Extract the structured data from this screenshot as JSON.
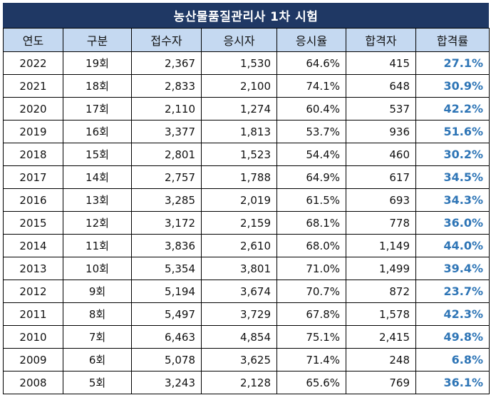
{
  "title": "농산물품질관리사 1차 시험",
  "columns": [
    "연도",
    "구분",
    "접수자",
    "응시자",
    "응시율",
    "합격자",
    "합격률"
  ],
  "rows": [
    {
      "year": "2022",
      "round": "19회",
      "applicants": "2,367",
      "examinees": "1,530",
      "exam_rate": "64.6%",
      "passers": "415",
      "pass_rate": "27.1%"
    },
    {
      "year": "2021",
      "round": "18회",
      "applicants": "2,833",
      "examinees": "2,100",
      "exam_rate": "74.1%",
      "passers": "648",
      "pass_rate": "30.9%"
    },
    {
      "year": "2020",
      "round": "17회",
      "applicants": "2,110",
      "examinees": "1,274",
      "exam_rate": "60.4%",
      "passers": "537",
      "pass_rate": "42.2%"
    },
    {
      "year": "2019",
      "round": "16회",
      "applicants": "3,377",
      "examinees": "1,813",
      "exam_rate": "53.7%",
      "passers": "936",
      "pass_rate": "51.6%"
    },
    {
      "year": "2018",
      "round": "15회",
      "applicants": "2,801",
      "examinees": "1,523",
      "exam_rate": "54.4%",
      "passers": "460",
      "pass_rate": "30.2%"
    },
    {
      "year": "2017",
      "round": "14회",
      "applicants": "2,757",
      "examinees": "1,788",
      "exam_rate": "64.9%",
      "passers": "617",
      "pass_rate": "34.5%"
    },
    {
      "year": "2016",
      "round": "13회",
      "applicants": "3,285",
      "examinees": "2,019",
      "exam_rate": "61.5%",
      "passers": "693",
      "pass_rate": "34.3%"
    },
    {
      "year": "2015",
      "round": "12회",
      "applicants": "3,172",
      "examinees": "2,159",
      "exam_rate": "68.1%",
      "passers": "778",
      "pass_rate": "36.0%"
    },
    {
      "year": "2014",
      "round": "11회",
      "applicants": "3,836",
      "examinees": "2,610",
      "exam_rate": "68.0%",
      "passers": "1,149",
      "pass_rate": "44.0%"
    },
    {
      "year": "2013",
      "round": "10회",
      "applicants": "5,354",
      "examinees": "3,801",
      "exam_rate": "71.0%",
      "passers": "1,499",
      "pass_rate": "39.4%"
    },
    {
      "year": "2012",
      "round": "9회",
      "applicants": "5,194",
      "examinees": "3,674",
      "exam_rate": "70.7%",
      "passers": "872",
      "pass_rate": "23.7%"
    },
    {
      "year": "2011",
      "round": "8회",
      "applicants": "5,497",
      "examinees": "3,729",
      "exam_rate": "67.8%",
      "passers": "1,578",
      "pass_rate": "42.3%"
    },
    {
      "year": "2010",
      "round": "7회",
      "applicants": "6,463",
      "examinees": "4,854",
      "exam_rate": "75.1%",
      "passers": "2,415",
      "pass_rate": "49.8%"
    },
    {
      "year": "2009",
      "round": "6회",
      "applicants": "5,078",
      "examinees": "3,625",
      "exam_rate": "71.4%",
      "passers": "248",
      "pass_rate": "6.8%"
    },
    {
      "year": "2008",
      "round": "5회",
      "applicants": "3,243",
      "examinees": "2,128",
      "exam_rate": "65.6%",
      "passers": "769",
      "pass_rate": "36.1%"
    }
  ]
}
